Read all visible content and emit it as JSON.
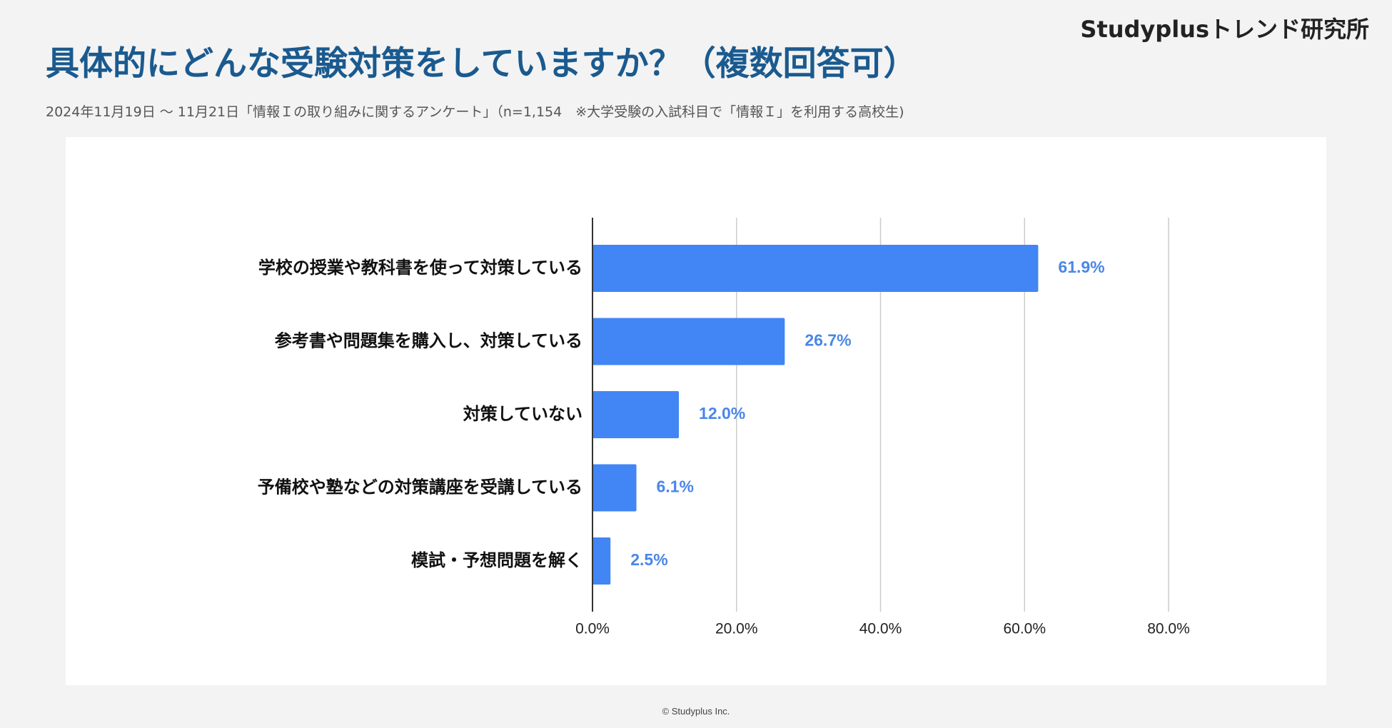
{
  "header": {
    "brand": "Studyplusトレンド研究所",
    "title": "具体的にどんな受験対策をしていますか？（複数回答可）",
    "subtitle": "2024年11月19日 〜 11月21日「情報Ｉの取り組みに関するアンケート」（n=1,154　※大学受験の入試科目で「情報Ｉ」を利用する高校生)"
  },
  "footer": {
    "copyright": "© Studyplus Inc."
  },
  "colors": {
    "bar": "#4285f4",
    "value_label": "#4a86e8",
    "title": "#1a5a8f",
    "grid": "#cccccc",
    "axis": "#333333"
  },
  "chart_data": {
    "type": "bar",
    "orientation": "horizontal",
    "title": "具体的にどんな受験対策をしていますか？（複数回答可）",
    "xlabel": "",
    "ylabel": "",
    "categories": [
      "学校の授業や教科書を使って対策している",
      "参考書や問題集を購入し、対策している",
      "対策していない",
      "予備校や塾などの対策講座を受講している",
      "模試・予想問題を解く"
    ],
    "values": [
      61.9,
      26.7,
      12.0,
      6.1,
      2.5
    ],
    "value_labels": [
      "61.9%",
      "26.7%",
      "12.0%",
      "6.1%",
      "2.5%"
    ],
    "xlim": [
      0,
      80
    ],
    "ticks": [
      0,
      20,
      40,
      60,
      80
    ],
    "tick_labels": [
      "0.0%",
      "20.0%",
      "40.0%",
      "60.0%",
      "80.0%"
    ],
    "grid": true,
    "legend": "none"
  }
}
